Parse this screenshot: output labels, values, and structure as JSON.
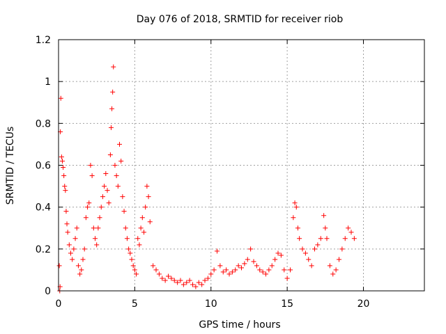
{
  "chart_data": {
    "type": "scatter",
    "title": "Day 076 of 2018, SRMTID for receiver riob",
    "xlabel": "GPS time / hours",
    "ylabel": "SRMTID / TECUs",
    "xlim": [
      0,
      24
    ],
    "ylim": [
      0,
      1.2
    ],
    "x_ticks": [
      0,
      5,
      10,
      15,
      20
    ],
    "x_tick_labels": [
      "0",
      "5",
      "10",
      "15",
      "20"
    ],
    "y_ticks": [
      0,
      0.2,
      0.4,
      0.6,
      0.8,
      1,
      1.2
    ],
    "y_tick_labels": [
      "0",
      "0.2",
      "0.4",
      "0.6",
      "0.8",
      "1",
      "1.2"
    ],
    "grid": true,
    "marker": "+",
    "color": "#ff0000",
    "series": [
      {
        "name": "riob",
        "points": [
          [
            0.05,
            0.12
          ],
          [
            0.08,
            0.0
          ],
          [
            0.1,
            0.02
          ],
          [
            0.12,
            0.76
          ],
          [
            0.15,
            0.92
          ],
          [
            0.2,
            0.64
          ],
          [
            0.25,
            0.62
          ],
          [
            0.3,
            0.59
          ],
          [
            0.35,
            0.55
          ],
          [
            0.4,
            0.5
          ],
          [
            0.45,
            0.48
          ],
          [
            0.5,
            0.38
          ],
          [
            0.55,
            0.32
          ],
          [
            0.6,
            0.28
          ],
          [
            0.7,
            0.22
          ],
          [
            0.8,
            0.18
          ],
          [
            0.9,
            0.15
          ],
          [
            1.0,
            0.2
          ],
          [
            1.1,
            0.25
          ],
          [
            1.2,
            0.3
          ],
          [
            1.3,
            0.12
          ],
          [
            1.4,
            0.08
          ],
          [
            1.5,
            0.1
          ],
          [
            1.6,
            0.15
          ],
          [
            1.7,
            0.2
          ],
          [
            1.8,
            0.35
          ],
          [
            1.9,
            0.4
          ],
          [
            2.0,
            0.42
          ],
          [
            2.1,
            0.6
          ],
          [
            2.2,
            0.55
          ],
          [
            2.3,
            0.3
          ],
          [
            2.4,
            0.25
          ],
          [
            2.5,
            0.22
          ],
          [
            2.6,
            0.3
          ],
          [
            2.7,
            0.35
          ],
          [
            2.8,
            0.4
          ],
          [
            2.9,
            0.45
          ],
          [
            3.0,
            0.5
          ],
          [
            3.1,
            0.56
          ],
          [
            3.2,
            0.48
          ],
          [
            3.3,
            0.42
          ],
          [
            3.4,
            0.65
          ],
          [
            3.45,
            0.78
          ],
          [
            3.5,
            0.87
          ],
          [
            3.55,
            0.95
          ],
          [
            3.6,
            1.07
          ],
          [
            3.7,
            0.6
          ],
          [
            3.8,
            0.55
          ],
          [
            3.9,
            0.5
          ],
          [
            4.0,
            0.7
          ],
          [
            4.1,
            0.62
          ],
          [
            4.2,
            0.45
          ],
          [
            4.3,
            0.38
          ],
          [
            4.4,
            0.3
          ],
          [
            4.5,
            0.25
          ],
          [
            4.6,
            0.2
          ],
          [
            4.7,
            0.18
          ],
          [
            4.8,
            0.15
          ],
          [
            4.9,
            0.12
          ],
          [
            5.0,
            0.1
          ],
          [
            5.1,
            0.08
          ],
          [
            5.2,
            0.25
          ],
          [
            5.3,
            0.22
          ],
          [
            5.4,
            0.3
          ],
          [
            5.5,
            0.35
          ],
          [
            5.6,
            0.28
          ],
          [
            5.7,
            0.4
          ],
          [
            5.8,
            0.5
          ],
          [
            5.9,
            0.45
          ],
          [
            6.0,
            0.33
          ],
          [
            6.2,
            0.12
          ],
          [
            6.4,
            0.1
          ],
          [
            6.6,
            0.08
          ],
          [
            6.8,
            0.06
          ],
          [
            7.0,
            0.05
          ],
          [
            7.2,
            0.07
          ],
          [
            7.4,
            0.06
          ],
          [
            7.6,
            0.05
          ],
          [
            7.8,
            0.04
          ],
          [
            8.0,
            0.05
          ],
          [
            8.2,
            0.03
          ],
          [
            8.4,
            0.04
          ],
          [
            8.6,
            0.05
          ],
          [
            8.8,
            0.03
          ],
          [
            9.0,
            0.02
          ],
          [
            9.2,
            0.04
          ],
          [
            9.4,
            0.03
          ],
          [
            9.6,
            0.05
          ],
          [
            9.8,
            0.06
          ],
          [
            10.0,
            0.08
          ],
          [
            10.2,
            0.1
          ],
          [
            10.4,
            0.19
          ],
          [
            10.6,
            0.12
          ],
          [
            10.8,
            0.09
          ],
          [
            11.0,
            0.1
          ],
          [
            11.2,
            0.08
          ],
          [
            11.4,
            0.09
          ],
          [
            11.6,
            0.1
          ],
          [
            11.8,
            0.12
          ],
          [
            12.0,
            0.11
          ],
          [
            12.2,
            0.13
          ],
          [
            12.4,
            0.15
          ],
          [
            12.6,
            0.2
          ],
          [
            12.8,
            0.14
          ],
          [
            13.0,
            0.12
          ],
          [
            13.2,
            0.1
          ],
          [
            13.4,
            0.09
          ],
          [
            13.6,
            0.08
          ],
          [
            13.8,
            0.1
          ],
          [
            14.0,
            0.12
          ],
          [
            14.2,
            0.15
          ],
          [
            14.4,
            0.18
          ],
          [
            14.6,
            0.17
          ],
          [
            14.8,
            0.1
          ],
          [
            15.0,
            0.06
          ],
          [
            15.2,
            0.1
          ],
          [
            15.4,
            0.35
          ],
          [
            15.5,
            0.42
          ],
          [
            15.6,
            0.4
          ],
          [
            15.7,
            0.3
          ],
          [
            15.8,
            0.25
          ],
          [
            16.0,
            0.2
          ],
          [
            16.2,
            0.18
          ],
          [
            16.4,
            0.15
          ],
          [
            16.6,
            0.12
          ],
          [
            16.8,
            0.2
          ],
          [
            17.0,
            0.22
          ],
          [
            17.2,
            0.25
          ],
          [
            17.4,
            0.36
          ],
          [
            17.5,
            0.3
          ],
          [
            17.6,
            0.25
          ],
          [
            17.8,
            0.12
          ],
          [
            18.0,
            0.08
          ],
          [
            18.2,
            0.1
          ],
          [
            18.4,
            0.15
          ],
          [
            18.6,
            0.2
          ],
          [
            18.8,
            0.25
          ],
          [
            19.0,
            0.3
          ],
          [
            19.2,
            0.28
          ],
          [
            19.4,
            0.25
          ]
        ]
      }
    ]
  }
}
